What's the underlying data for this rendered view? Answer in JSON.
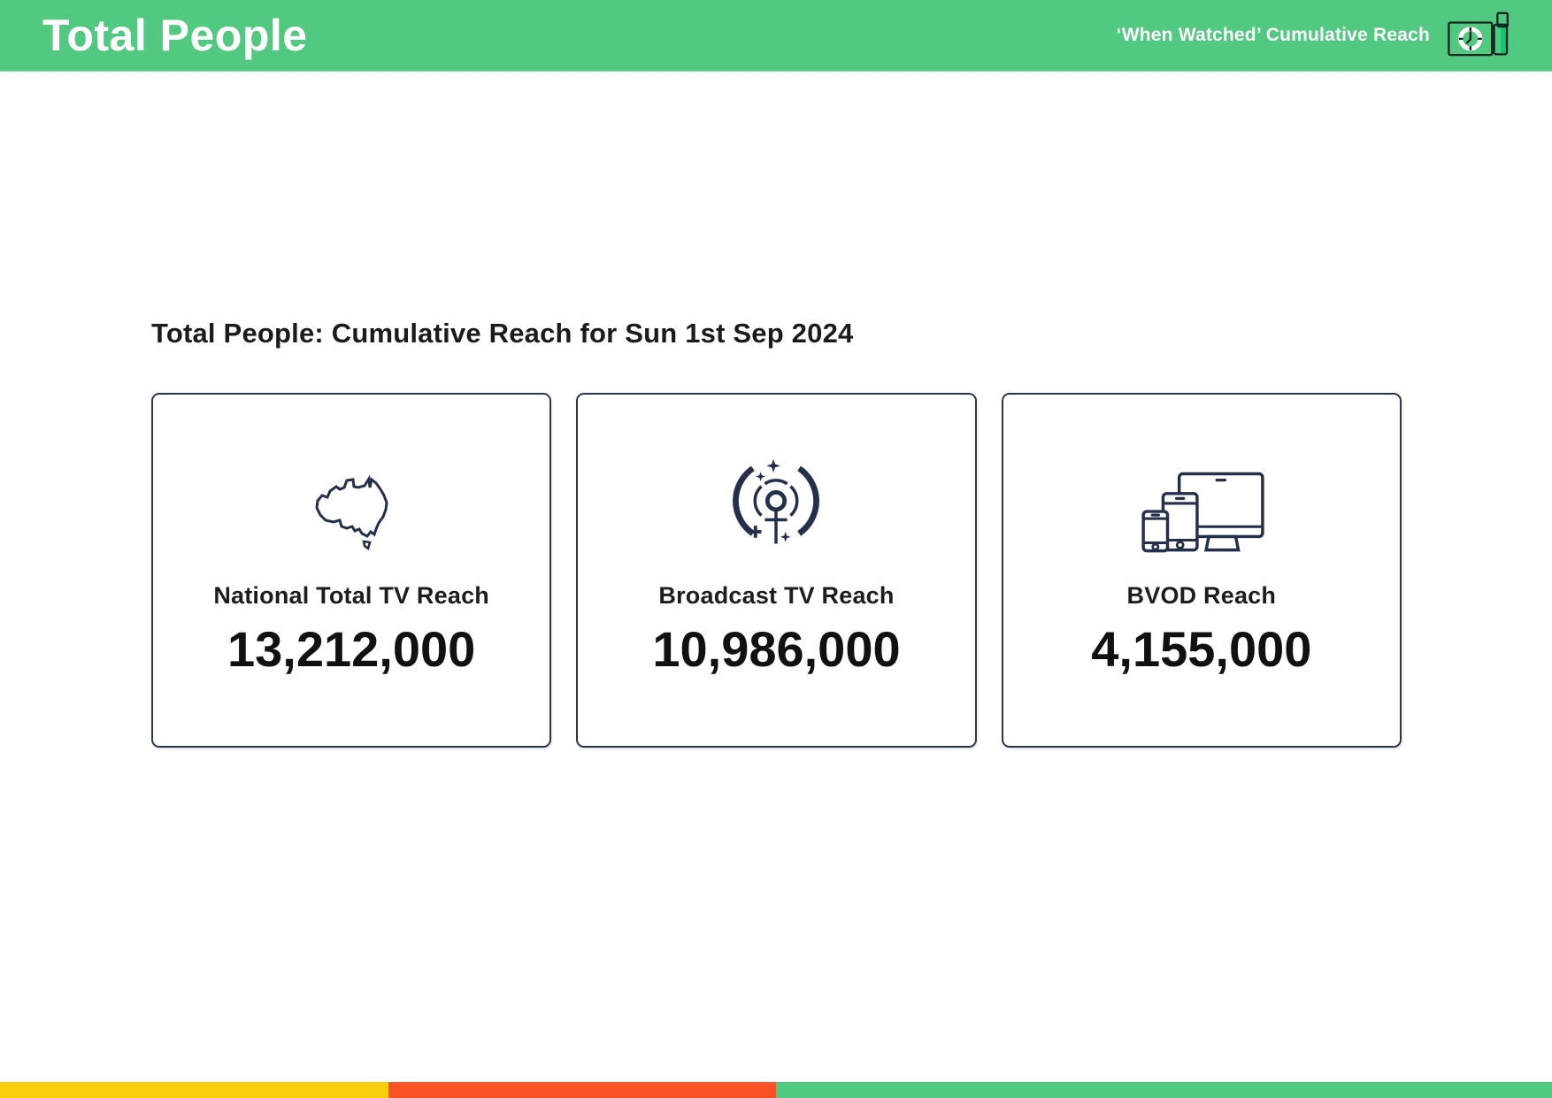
{
  "header": {
    "title": "Total People",
    "subtitle": "‘When Watched’ Cumulative Reach",
    "logo_icon": "tv-clock-device-icon"
  },
  "main": {
    "heading": "Total People: Cumulative Reach for Sun 1st Sep 2024",
    "cards": [
      {
        "icon": "australia-map-icon",
        "label": "National Total TV Reach",
        "value": "13,212,000"
      },
      {
        "icon": "broadcast-antenna-icon",
        "label": "Broadcast TV Reach",
        "value": "10,986,000"
      },
      {
        "icon": "devices-icon",
        "label": "BVOD Reach",
        "value": "4,155,000"
      }
    ]
  },
  "footer": {
    "segments": [
      {
        "name": "yellow-segment",
        "color": "#F9CE0D",
        "width_pct": 25
      },
      {
        "name": "red-segment",
        "color": "#FB5126",
        "width_pct": 25
      },
      {
        "name": "green-segment",
        "color": "#52C981",
        "width_pct": 50
      }
    ]
  },
  "colors": {
    "brand_green": "#52C981",
    "accent_green": "#0FC873",
    "navy": "#242F4B",
    "text": "#1B1B1B"
  }
}
